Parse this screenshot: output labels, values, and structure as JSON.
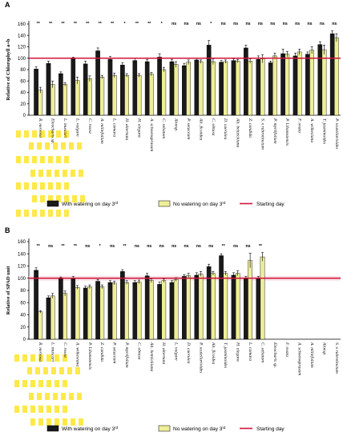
{
  "chart_data": [
    {
      "type": "bar",
      "title": "A",
      "ylabel": "Relative of Chlorophyll a+b",
      "ylim": [
        0,
        160
      ],
      "yticks": [
        0,
        20,
        40,
        60,
        80,
        100,
        120,
        140,
        160
      ],
      "reference_line": 100,
      "categories": [
        "R. nervosa",
        "Eleocharis sp.",
        "L. muscari",
        "L. vulgare",
        "C. rosea",
        "A. millefolium",
        "L. camara",
        "H. alternata",
        "H. elegans",
        "A. schoenoprasum",
        "C. sebatum",
        "Aloesp.",
        "P. setaceum",
        "Alt. ficoidea",
        "C. obtusa",
        "D. caerulea",
        "Alt. bettzickiana",
        "Z. candida",
        "S. x rubrotinctum",
        "P. myrtifolium",
        "P. Libanotensis",
        "F. ovata",
        "A. wilkesiana",
        "T. jasminoides",
        "P. scutellarioides"
      ],
      "significance": [
        "**",
        "**",
        "**",
        "**",
        "**",
        "**",
        "**",
        "*",
        "**",
        "**",
        "*",
        "ns",
        "ns",
        "ns",
        "*",
        "ns",
        "ns",
        "ns",
        "ns",
        "ns",
        "ns",
        "ns",
        "ns",
        "ns",
        "ns"
      ],
      "series": [
        {
          "name": "With watering on day 3rd",
          "values": [
            81,
            91,
            73,
            99,
            90,
            113,
            98,
            88,
            96,
            94,
            102,
            94,
            87,
            97,
            123,
            93,
            96,
            118,
            98,
            92,
            108,
            104,
            107,
            124,
            143
          ],
          "errors": [
            4,
            4,
            3,
            3,
            5,
            5,
            5,
            4,
            4,
            4,
            6,
            4,
            4,
            3,
            8,
            3,
            3,
            5,
            6,
            3,
            8,
            5,
            4,
            5,
            5
          ]
        },
        {
          "name": "No watering on day 3rd",
          "values": [
            44,
            54,
            54,
            61,
            64,
            67,
            70,
            70,
            70,
            72,
            80,
            89,
            93,
            94,
            94,
            94,
            95,
            95,
            99,
            104,
            107,
            111,
            114,
            115,
            136
          ],
          "errors": [
            5,
            6,
            3,
            6,
            5,
            3,
            4,
            3,
            3,
            3,
            4,
            5,
            4,
            3,
            5,
            3,
            3,
            4,
            7,
            5,
            5,
            5,
            6,
            8,
            7
          ]
        }
      ],
      "legend_labels": [
        "With watering on day 3",
        "No watering on day 3",
        "Starting day"
      ],
      "legend_superscript": "rd",
      "colors": {
        "with": "#1a1a1a",
        "without": "#eeee99",
        "line": "#d0143c"
      }
    },
    {
      "type": "bar",
      "title": "B",
      "ylabel": "Relative of SPAD unit",
      "ylim": [
        0,
        160
      ],
      "yticks": [
        0,
        20,
        40,
        60,
        80,
        100,
        120,
        140,
        160
      ],
      "reference_line": 100,
      "categories": [
        "R. nervosa",
        "L. muscari",
        "C. rosea",
        "A. wilkesiana",
        "P. Libanotensis",
        "Z. candida",
        "P. setaceum",
        "P. myrtifolium",
        "C. obtusa",
        "Alt. bettzickiana",
        "H. alternata",
        "L. vulgare",
        "D. caerulea",
        "P. scutellarioides",
        "Alt. ficoidea",
        "T. jasminoides",
        "H. elegans",
        "L. camara",
        "C. sebatum",
        "Eleocharis sp.",
        "F. ovata",
        "A. schoenoprasum",
        "A. millefolium",
        "Aloesp.",
        "S. x rubrotinctum"
      ],
      "significance": [
        "**",
        "ns",
        "**",
        "**",
        "ns",
        "*",
        "ns",
        "**",
        "ns",
        "ns",
        "ns",
        "ns",
        "ns",
        "ns",
        "ns",
        "**",
        "ns",
        "ns",
        "**",
        "",
        "",
        "",
        "",
        "",
        ""
      ],
      "series": [
        {
          "name": "With watering on day 3rd",
          "values": [
            113,
            68,
            99,
            100,
            84,
            95,
            93,
            111,
            93,
            104,
            90,
            93,
            103,
            105,
            119,
            137,
            105,
            100,
            100,
            null,
            null,
            null,
            null,
            null,
            null
          ],
          "errors": [
            4,
            3,
            3,
            3,
            3,
            3,
            3,
            3,
            3,
            4,
            4,
            3,
            3,
            4,
            4,
            3,
            4,
            3,
            3,
            null,
            null,
            null,
            null,
            null,
            null
          ]
        },
        {
          "name": "No watering on day 3rd",
          "values": [
            45,
            71,
            75,
            85,
            86,
            86,
            92,
            93,
            94,
            96,
            96,
            98,
            104,
            107,
            108,
            108,
            108,
            129,
            135,
            null,
            null,
            null,
            null,
            null,
            null
          ],
          "errors": [
            2,
            4,
            4,
            3,
            3,
            3,
            3,
            3,
            3,
            3,
            3,
            3,
            4,
            4,
            3,
            3,
            4,
            12,
            7,
            null,
            null,
            null,
            null,
            null,
            null
          ]
        }
      ],
      "legend_labels": [
        "With watering on day 3",
        "No watering on day 3",
        "Starting day"
      ],
      "legend_superscript": "rd",
      "colors": {
        "with": "#1a1a1a",
        "without": "#eeee99",
        "line": "#d0143c"
      }
    }
  ]
}
